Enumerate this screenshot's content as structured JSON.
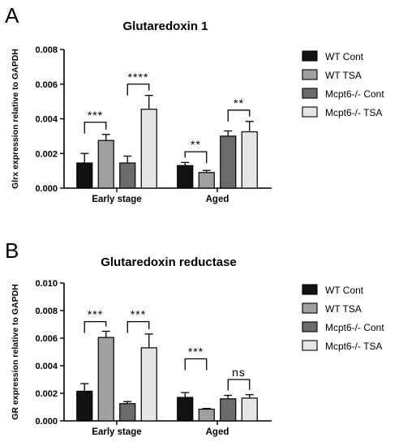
{
  "panels": [
    {
      "letter": "A"
    },
    {
      "letter": "B"
    }
  ],
  "chart_data": [
    {
      "type": "bar",
      "title": "Glutaredoxin 1",
      "xlabel": "",
      "ylabel": "Glrx expression relative to GAPDH",
      "ylim": [
        0,
        0.008
      ],
      "yticks": [
        "0.000",
        "0.002",
        "0.004",
        "0.006",
        "0.008"
      ],
      "categories": [
        "Early stage",
        "Aged"
      ],
      "series": [
        {
          "name": "WT Cont",
          "color": "#111111",
          "values": [
            0.00145,
            0.0013
          ],
          "errors": [
            0.00055,
            0.00018
          ]
        },
        {
          "name": "WT TSA",
          "color": "#a0a0a0",
          "values": [
            0.00275,
            0.0009
          ],
          "errors": [
            0.00035,
            0.00012
          ]
        },
        {
          "name": "Mcpt6-/- Cont",
          "color": "#6b6b6b",
          "values": [
            0.00145,
            0.003
          ],
          "errors": [
            0.0004,
            0.0003
          ]
        },
        {
          "name": "Mcpt6-/- TSA",
          "color": "#e6e6e6",
          "values": [
            0.00455,
            0.00325
          ],
          "errors": [
            0.0008,
            0.0006
          ]
        }
      ],
      "legend_position": "right",
      "annotations": [
        {
          "category": 0,
          "from": 0,
          "to": 1,
          "label": "***",
          "y": 0.0038
        },
        {
          "category": 0,
          "from": 2,
          "to": 3,
          "label": "****",
          "y": 0.006
        },
        {
          "category": 1,
          "from": 0,
          "to": 1,
          "label": "**",
          "y": 0.0021
        },
        {
          "category": 1,
          "from": 2,
          "to": 3,
          "label": "**",
          "y": 0.0045
        }
      ]
    },
    {
      "type": "bar",
      "title": "Glutaredoxin reductase",
      "xlabel": "",
      "ylabel": "GR expression relative to GAPDH",
      "ylim": [
        0,
        0.01
      ],
      "yticks": [
        "0.000",
        "0.002",
        "0.004",
        "0.006",
        "0.008",
        "0.010"
      ],
      "categories": [
        "Early stage",
        "Aged"
      ],
      "series": [
        {
          "name": "WT Cont",
          "color": "#111111",
          "values": [
            0.00215,
            0.0017
          ],
          "errors": [
            0.00055,
            0.00035
          ]
        },
        {
          "name": "WT TSA",
          "color": "#a0a0a0",
          "values": [
            0.00605,
            0.00085
          ],
          "errors": [
            0.00045,
            5e-05
          ]
        },
        {
          "name": "Mcpt6-/- Cont",
          "color": "#6b6b6b",
          "values": [
            0.00125,
            0.0016
          ],
          "errors": [
            0.00015,
            0.00025
          ]
        },
        {
          "name": "Mcpt6-/- TSA",
          "color": "#e6e6e6",
          "values": [
            0.0053,
            0.00165
          ],
          "errors": [
            0.001,
            0.00025
          ]
        }
      ],
      "legend_position": "right",
      "annotations": [
        {
          "category": 0,
          "from": 0,
          "to": 1,
          "label": "***",
          "y": 0.0072
        },
        {
          "category": 0,
          "from": 2,
          "to": 3,
          "label": "***",
          "y": 0.0072
        },
        {
          "category": 1,
          "from": 0,
          "to": 1,
          "label": "***",
          "y": 0.0045
        },
        {
          "category": 1,
          "from": 2,
          "to": 3,
          "label": "ns",
          "y": 0.003
        }
      ]
    }
  ]
}
